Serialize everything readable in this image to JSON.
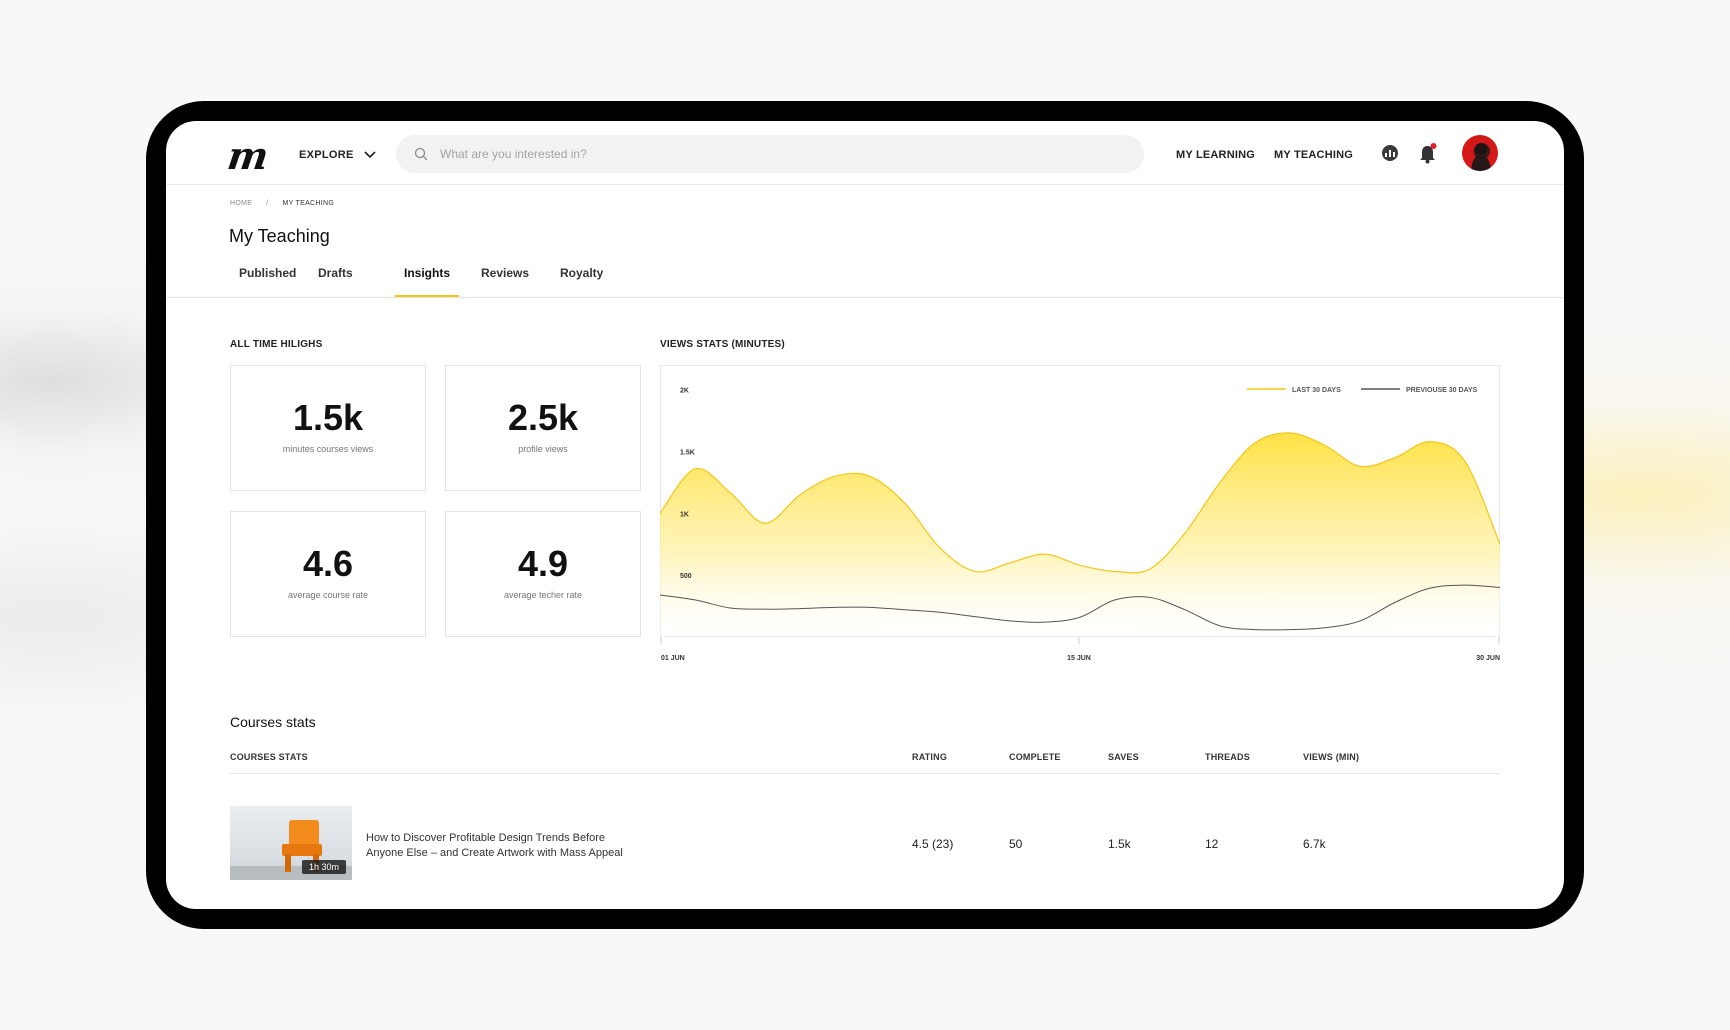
{
  "header": {
    "explore_label": "EXPLORE",
    "search_placeholder": "What are you interested in?",
    "nav_links": [
      "MY LEARNING",
      "MY TEACHING"
    ]
  },
  "breadcrumb": [
    "HOME",
    "/",
    "MY TEACHING"
  ],
  "page_title": "My Teaching",
  "tabs": [
    {
      "label": "Published"
    },
    {
      "label": "Drafts"
    },
    {
      "label": "Insights",
      "active": true
    },
    {
      "label": "Reviews"
    },
    {
      "label": "Royalty"
    }
  ],
  "highlights": {
    "title": "ALL TIME HILIGHS",
    "cards": [
      {
        "value": "1.5k",
        "label": "minutes courses views"
      },
      {
        "value": "2.5k",
        "label": "profile views"
      },
      {
        "value": "4.6",
        "label": "average course rate"
      },
      {
        "value": "4.9",
        "label": "average techer rate"
      }
    ]
  },
  "chart_data": {
    "type": "area",
    "title": "VIEWS STATS (MINUTES)",
    "y_ticks": [
      "2K",
      "1.5K",
      "1K",
      "500"
    ],
    "y_tick_values": [
      2000,
      1500,
      1000,
      500
    ],
    "x_ticks": [
      "01 JUN",
      "15 JUN",
      "30 JUN"
    ],
    "ylim": [
      0,
      2200
    ],
    "legend_position": "top-right",
    "series": [
      {
        "name": "LAST 30 DAYS",
        "color": "#f5c518",
        "values": [
          1000,
          1360,
          1170,
          920,
          1150,
          1300,
          1300,
          1080,
          720,
          530,
          600,
          670,
          580,
          530,
          550,
          840,
          1250,
          1570,
          1650,
          1550,
          1380,
          1450,
          1580,
          1420,
          750
        ]
      },
      {
        "name": "PREVIOUSE 30 DAYS",
        "color": "#555555",
        "values": [
          340,
          300,
          235,
          225,
          230,
          240,
          240,
          220,
          200,
          165,
          130,
          120,
          160,
          300,
          320,
          220,
          90,
          60,
          60,
          75,
          130,
          280,
          395,
          420,
          400
        ]
      }
    ]
  },
  "courses": {
    "section_title": "Courses stats",
    "columns": [
      "COURSES STATS",
      "RATING",
      "COMPLETE",
      "SAVES",
      "THREADS",
      "VIEWS (MIN)"
    ],
    "rows": [
      {
        "duration": "1h 30m",
        "title": "How to Discover Profitable Design Trends Before Anyone Else – and Create Artwork with Mass Appeal",
        "rating": "4.5 (23)",
        "complete": "50",
        "saves": "1.5k",
        "threads": "12",
        "views": "6.7k"
      }
    ]
  }
}
